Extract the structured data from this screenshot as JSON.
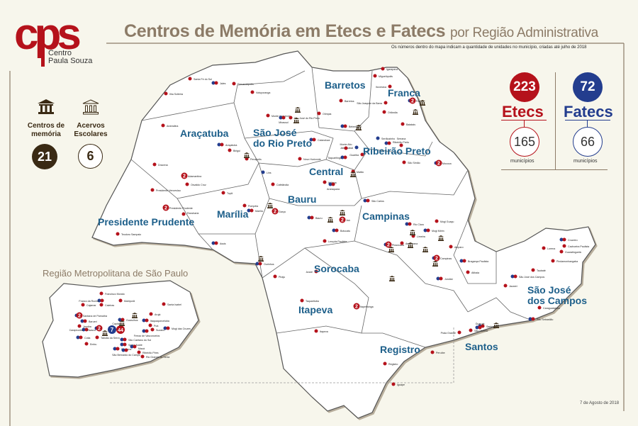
{
  "header": {
    "title_main": "Centros de Memória em Etecs e Fatecs",
    "title_sub": "por Região Administrativa",
    "note": "Os números dentro do mapa indicam a quantidade de unidades no município, criadas até julho de 2018"
  },
  "logo": {
    "letters": "cps",
    "line1": "Centro",
    "line2": "Paula Souza"
  },
  "legend": {
    "centros_label": "Centros de memória",
    "centros_count": "21",
    "acervos_label": "Acervos Escolares",
    "acervos_count": "6",
    "centros_icon": "museum-filled-icon",
    "acervos_icon": "museum-outline-icon"
  },
  "stats": {
    "etecs_count": "223",
    "etecs_label": "Etecs",
    "etecs_municipios": "165",
    "fatecs_count": "72",
    "fatecs_label": "Fatecs",
    "fatecs_municipios": "66",
    "municipios_label": "municípios"
  },
  "colors": {
    "etec": "#b5121b",
    "fatec": "#233d8e",
    "region_label": "#1d5f8a",
    "title": "#8c7b67",
    "museum": "#3a2a14",
    "background": "#f7f6ec"
  },
  "metro_title": "Região Metropolitana de São Paulo",
  "footer_date": "7 de Agosto de 2018",
  "regions": [
    "Barretos",
    "Franca",
    "Araçatuba",
    "São José do Rio Preto",
    "Central",
    "Ribeirão Preto",
    "Bauru",
    "Presidente Prudente",
    "Marília",
    "Campinas",
    "Sorocaba",
    "Itapeva",
    "Registro",
    "Santos",
    "São José dos Campos"
  ],
  "cities": [
    {
      "name": "Santa Fé do Sul",
      "kind": "etec"
    },
    {
      "name": "Jales",
      "kind": "both"
    },
    {
      "name": "Fernandópolis",
      "kind": "etec"
    },
    {
      "name": "Votuporanga",
      "kind": "etec"
    },
    {
      "name": "Ilha Solteira",
      "kind": "etec"
    },
    {
      "name": "Andradina",
      "kind": "etec"
    },
    {
      "name": "Araçatuba",
      "kind": "both"
    },
    {
      "name": "Birigui",
      "kind": "etec"
    },
    {
      "name": "Penápolis",
      "kind": "etec"
    },
    {
      "name": "Dracena",
      "kind": "etec"
    },
    {
      "name": "Monte Aprazível",
      "kind": "etec"
    },
    {
      "name": "Mirassol",
      "kind": "both"
    },
    {
      "name": "São José do Rio Preto",
      "kind": "etec"
    },
    {
      "name": "Catanduva",
      "kind": "both"
    },
    {
      "name": "Novo Horizonte",
      "kind": "etec"
    },
    {
      "name": "Barretos",
      "kind": "etec"
    },
    {
      "name": "Olímpia",
      "kind": "etec"
    },
    {
      "name": "Bebedouro",
      "kind": "both"
    },
    {
      "name": "Franca",
      "kind": "both",
      "count": "2"
    },
    {
      "name": "São Joaquim da Barra",
      "kind": "etec"
    },
    {
      "name": "Orlândia",
      "kind": "etec"
    },
    {
      "name": "Igarapava",
      "kind": "etec"
    },
    {
      "name": "Miguelópolis",
      "kind": "etec"
    },
    {
      "name": "Ituverava",
      "kind": "etec"
    },
    {
      "name": "Batatais",
      "kind": "etec"
    },
    {
      "name": "Sertãozinho",
      "kind": "fatec"
    },
    {
      "name": "Ribeirão Preto",
      "kind": "both"
    },
    {
      "name": "Serrana",
      "kind": "etec"
    },
    {
      "name": "Jaboticabal",
      "kind": "fatec"
    },
    {
      "name": "Monte Alto",
      "kind": "etec"
    },
    {
      "name": "Taquaritinga",
      "kind": "both"
    },
    {
      "name": "Guariba",
      "kind": "etec"
    },
    {
      "name": "Mococa",
      "kind": "both",
      "count": "2"
    },
    {
      "name": "São Simão",
      "kind": "etec"
    },
    {
      "name": "Matão",
      "kind": "etec"
    },
    {
      "name": "Ibitinga",
      "kind": "etec"
    },
    {
      "name": "Araraquara",
      "kind": "both"
    },
    {
      "name": "São Carlos",
      "kind": "both"
    },
    {
      "name": "Bauru",
      "kind": "both"
    },
    {
      "name": "Jaú",
      "kind": "etec",
      "count": "2"
    },
    {
      "name": "Lins",
      "kind": "fatec"
    },
    {
      "name": "Cafelândia",
      "kind": "etec"
    },
    {
      "name": "Presidente Venceslau",
      "kind": "etec"
    },
    {
      "name": "Presidente Prudente",
      "kind": "etec",
      "count": "2"
    },
    {
      "name": "Rancharia",
      "kind": "etec"
    },
    {
      "name": "Teodoro Sampaio",
      "kind": "etec"
    },
    {
      "name": "Adamantina",
      "kind": "etec",
      "count": "2"
    },
    {
      "name": "Osvaldo Cruz",
      "kind": "etec"
    },
    {
      "name": "Tupã",
      "kind": "etec"
    },
    {
      "name": "Pompéia",
      "kind": "etec"
    },
    {
      "name": "Marília",
      "kind": "both"
    },
    {
      "name": "Garça",
      "kind": "etec",
      "count": "2"
    },
    {
      "name": "Ourinhos",
      "kind": "both"
    },
    {
      "name": "Assis",
      "kind": "both"
    },
    {
      "name": "Piraju",
      "kind": "etec"
    },
    {
      "name": "Botucatu",
      "kind": "both"
    },
    {
      "name": "Lençóis Paulista",
      "kind": "etec"
    },
    {
      "name": "Avaré",
      "kind": "etec"
    },
    {
      "name": "Itapetininga",
      "kind": "etec",
      "count": "2"
    },
    {
      "name": "Taquarituba",
      "kind": "etec"
    },
    {
      "name": "Itapeva",
      "kind": "etec"
    },
    {
      "name": "Registro",
      "kind": "etec"
    },
    {
      "name": "Iguape",
      "kind": "etec"
    },
    {
      "name": "Campinas",
      "kind": "both",
      "count": "2"
    },
    {
      "name": "Jundiaí",
      "kind": "both"
    },
    {
      "name": "Piracicaba",
      "kind": "both",
      "count": "2"
    },
    {
      "name": "Americana",
      "kind": "etec"
    },
    {
      "name": "Limeira",
      "kind": "etec"
    },
    {
      "name": "Rio Claro",
      "kind": "both"
    },
    {
      "name": "Mogi Mirim",
      "kind": "both"
    },
    {
      "name": "Mogi Guaçu",
      "kind": "etec"
    },
    {
      "name": "Amparo",
      "kind": "etec"
    },
    {
      "name": "Bragança Paulista",
      "kind": "both"
    },
    {
      "name": "Atibaia",
      "kind": "etec"
    },
    {
      "name": "Santos",
      "kind": "both"
    },
    {
      "name": "São Vicente",
      "kind": "etec"
    },
    {
      "name": "Guarujá",
      "kind": "both"
    },
    {
      "name": "Praia Grande",
      "kind": "etec"
    },
    {
      "name": "Peruíbe",
      "kind": "etec"
    },
    {
      "name": "São José dos Campos",
      "kind": "both"
    },
    {
      "name": "Taubaté",
      "kind": "etec"
    },
    {
      "name": "Guaratinguetá",
      "kind": "etec"
    },
    {
      "name": "Lorena",
      "kind": "etec"
    },
    {
      "name": "Cruzeiro",
      "kind": "both"
    },
    {
      "name": "Pindamonhangaba",
      "kind": "etec"
    },
    {
      "name": "Jacareí",
      "kind": "etec"
    },
    {
      "name": "Caraguatatuba",
      "kind": "etec"
    },
    {
      "name": "São Sebastião",
      "kind": "both"
    },
    {
      "name": "Cachoeira Paulista",
      "kind": "etec"
    }
  ],
  "metro_cities": [
    {
      "name": "Francisco Morato",
      "kind": "etec"
    },
    {
      "name": "Mairiporã",
      "kind": "etec"
    },
    {
      "name": "Franco da Rocha",
      "kind": "both"
    },
    {
      "name": "Caieiras",
      "kind": "etec"
    },
    {
      "name": "Cajamar",
      "kind": "etec"
    },
    {
      "name": "Santana de Parnaíba",
      "kind": "both",
      "count": "2"
    },
    {
      "name": "Barueri",
      "kind": "both"
    },
    {
      "name": "Jandira",
      "kind": "etec"
    },
    {
      "name": "Carapicuíba",
      "kind": "both"
    },
    {
      "name": "Osasco",
      "kind": "both",
      "count": "2"
    },
    {
      "name": "Cotia",
      "kind": "both"
    },
    {
      "name": "Embu",
      "kind": "etec"
    },
    {
      "name": "Taboão da Serra",
      "kind": "etec"
    },
    {
      "name": "Guarulhos",
      "kind": "both"
    },
    {
      "name": "Capital",
      "kind": "both",
      "fatec_count": "7",
      "etec_count": "44"
    },
    {
      "name": "São Caetano do Sul",
      "kind": "both"
    },
    {
      "name": "Santo André",
      "kind": "both"
    },
    {
      "name": "Diadema",
      "kind": "both"
    },
    {
      "name": "Mauá",
      "kind": "both"
    },
    {
      "name": "São Bernardo do Campo",
      "kind": "both"
    },
    {
      "name": "Ribeirão Pires",
      "kind": "etec"
    },
    {
      "name": "Rio Grande da Serra",
      "kind": "etec"
    },
    {
      "name": "Itaquaquecetuba",
      "kind": "both"
    },
    {
      "name": "Poá",
      "kind": "etec"
    },
    {
      "name": "Suzano",
      "kind": "etec"
    },
    {
      "name": "Ferraz de Vasconcelos",
      "kind": "both"
    },
    {
      "name": "Mogi das Cruzes",
      "kind": "both"
    },
    {
      "name": "Arujá",
      "kind": "etec"
    },
    {
      "name": "Santa Isabel",
      "kind": "etec"
    }
  ]
}
